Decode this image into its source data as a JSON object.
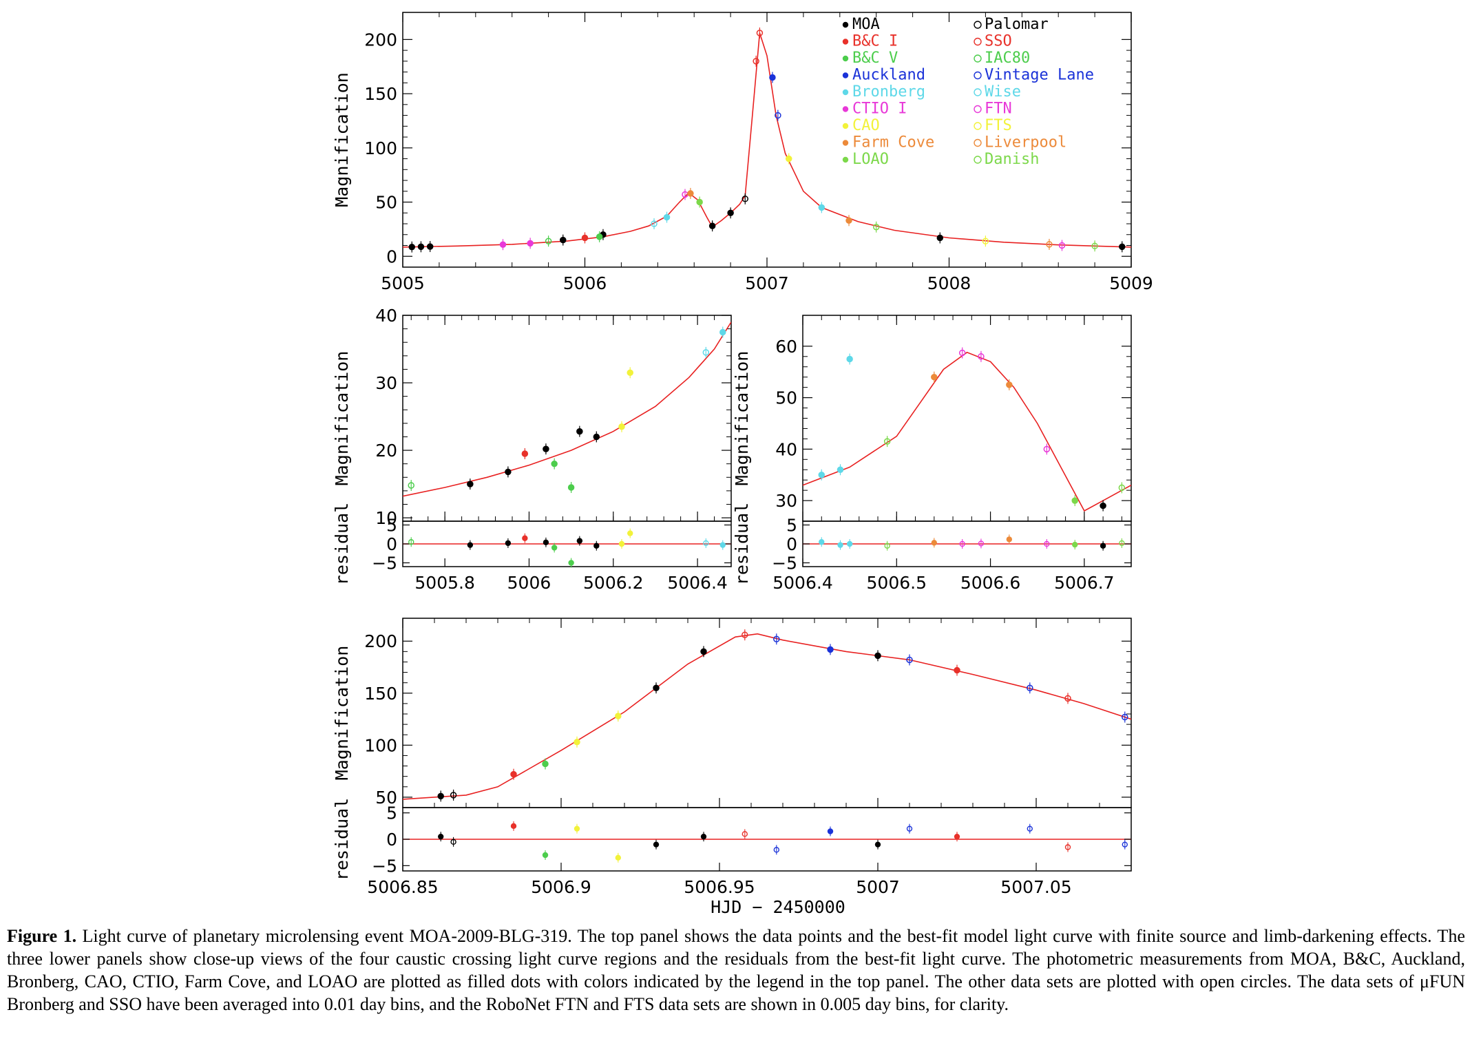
{
  "caption": {
    "label": "Figure 1.",
    "text": "Light curve of planetary microlensing event MOA-2009-BLG-319. The top panel shows the data points and the best-fit model light curve with finite source and limb-darkening effects. The three lower panels show close-up views of the four caustic crossing light curve regions and the residuals from the best-fit light curve. The photometric measurements from MOA, B&C, Auckland, Bronberg, CAO, CTIO, Farm Cove, and LOAO are plotted as filled dots with colors indicated by the legend in the top panel. The other data sets are plotted with open circles. The data sets of μFUN Bronberg and SSO have been averaged into 0.01 day bins, and the RoboNet FTN and FTS data sets are shown in 0.005 day bins, for clarity."
  },
  "xlabel": "HJD − 2450000",
  "ylabel": "Magnification",
  "residual_label": "residual",
  "legend": [
    {
      "name": "MOA",
      "color": "#000000",
      "filled": true
    },
    {
      "name": "B&C I",
      "color": "#e8312a",
      "filled": true
    },
    {
      "name": "B&C V",
      "color": "#4ccd4c",
      "filled": true
    },
    {
      "name": "Auckland",
      "color": "#1a32d8",
      "filled": true
    },
    {
      "name": "Bronberg",
      "color": "#5ed8e8",
      "filled": true
    },
    {
      "name": "CTIO I",
      "color": "#e838d8",
      "filled": true
    },
    {
      "name": "CAO",
      "color": "#f2f23a",
      "filled": true
    },
    {
      "name": "Farm Cove",
      "color": "#ec8a3a",
      "filled": true
    },
    {
      "name": "LOAO",
      "color": "#7cd84a",
      "filled": true
    },
    {
      "name": "Palomar",
      "color": "#000000",
      "filled": false
    },
    {
      "name": "SSO",
      "color": "#e8312a",
      "filled": false
    },
    {
      "name": "IAC80",
      "color": "#4ccd4c",
      "filled": false
    },
    {
      "name": "Vintage Lane",
      "color": "#1a32d8",
      "filled": false
    },
    {
      "name": "Wise",
      "color": "#5ed8e8",
      "filled": false
    },
    {
      "name": "FTN",
      "color": "#e838d8",
      "filled": false
    },
    {
      "name": "FTS",
      "color": "#f2f23a",
      "filled": false
    },
    {
      "name": "Liverpool",
      "color": "#ec8a3a",
      "filled": false
    },
    {
      "name": "Danish",
      "color": "#7cd84a",
      "filled": false
    }
  ],
  "model_color": "#e82020",
  "chart_data": [
    {
      "id": "top",
      "type": "scatter",
      "xlim": [
        5005,
        5009
      ],
      "ylim": [
        -10,
        225
      ],
      "xticks": [
        "5005",
        "5006",
        "5007",
        "5008",
        "5009"
      ],
      "yticks": [
        "0",
        "50",
        "100",
        "150",
        "200"
      ],
      "model": [
        [
          5005.0,
          8.5
        ],
        [
          5005.3,
          9.5
        ],
        [
          5005.6,
          11
        ],
        [
          5005.9,
          14
        ],
        [
          5006.1,
          18
        ],
        [
          5006.25,
          23
        ],
        [
          5006.35,
          28
        ],
        [
          5006.45,
          37
        ],
        [
          5006.52,
          50
        ],
        [
          5006.57,
          58.5
        ],
        [
          5006.62,
          52
        ],
        [
          5006.67,
          36
        ],
        [
          5006.7,
          27
        ],
        [
          5006.75,
          33
        ],
        [
          5006.8,
          40
        ],
        [
          5006.85,
          48
        ],
        [
          5006.88,
          56
        ],
        [
          5006.92,
          130
        ],
        [
          5006.96,
          206
        ],
        [
          5007.0,
          185
        ],
        [
          5007.05,
          130
        ],
        [
          5007.1,
          95
        ],
        [
          5007.2,
          60
        ],
        [
          5007.3,
          45
        ],
        [
          5007.5,
          32
        ],
        [
          5007.7,
          24
        ],
        [
          5008.0,
          17
        ],
        [
          5008.3,
          13
        ],
        [
          5008.6,
          10.5
        ],
        [
          5009.0,
          8.5
        ]
      ],
      "points": [
        {
          "s": "MOA",
          "x": 5005.05,
          "y": 8.6
        },
        {
          "s": "MOA",
          "x": 5005.1,
          "y": 8.8
        },
        {
          "s": "MOA",
          "x": 5005.15,
          "y": 9.0
        },
        {
          "s": "CTIO I",
          "x": 5005.55,
          "y": 10.8
        },
        {
          "s": "CTIO I",
          "x": 5005.7,
          "y": 12
        },
        {
          "s": "IAC80",
          "x": 5005.8,
          "y": 14
        },
        {
          "s": "MOA",
          "x": 5005.88,
          "y": 15
        },
        {
          "s": "B&C I",
          "x": 5006.0,
          "y": 17
        },
        {
          "s": "MOA",
          "x": 5006.1,
          "y": 20
        },
        {
          "s": "B&C V",
          "x": 5006.08,
          "y": 18
        },
        {
          "s": "Wise",
          "x": 5006.38,
          "y": 30
        },
        {
          "s": "Bronberg",
          "x": 5006.45,
          "y": 36
        },
        {
          "s": "FTN",
          "x": 5006.55,
          "y": 57
        },
        {
          "s": "Farm Cove",
          "x": 5006.58,
          "y": 58
        },
        {
          "s": "LOAO",
          "x": 5006.63,
          "y": 50
        },
        {
          "s": "MOA",
          "x": 5006.7,
          "y": 28
        },
        {
          "s": "MOA",
          "x": 5006.8,
          "y": 40
        },
        {
          "s": "Palomar",
          "x": 5006.88,
          "y": 53
        },
        {
          "s": "SSO",
          "x": 5006.94,
          "y": 180
        },
        {
          "s": "SSO",
          "x": 5006.96,
          "y": 206
        },
        {
          "s": "Auckland",
          "x": 5007.03,
          "y": 165
        },
        {
          "s": "Vintage Lane",
          "x": 5007.06,
          "y": 130
        },
        {
          "s": "CAO",
          "x": 5007.12,
          "y": 90
        },
        {
          "s": "Bronberg",
          "x": 5007.3,
          "y": 45
        },
        {
          "s": "Farm Cove",
          "x": 5007.45,
          "y": 33
        },
        {
          "s": "Danish",
          "x": 5007.6,
          "y": 27
        },
        {
          "s": "MOA",
          "x": 5007.95,
          "y": 17
        },
        {
          "s": "FTS",
          "x": 5008.2,
          "y": 14
        },
        {
          "s": "Liverpool",
          "x": 5008.55,
          "y": 11
        },
        {
          "s": "FTN",
          "x": 5008.62,
          "y": 10
        },
        {
          "s": "Danish",
          "x": 5008.8,
          "y": 9.5
        },
        {
          "s": "MOA",
          "x": 5008.95,
          "y": 8.8
        }
      ]
    },
    {
      "id": "mid-left",
      "type": "scatter",
      "xlim": [
        5005.7,
        5006.48
      ],
      "ylim": [
        9.5,
        40
      ],
      "rlim": [
        -6,
        6
      ],
      "xticks": [
        "5005.8",
        "5006",
        "5006.2",
        "5006.4"
      ],
      "yticks": [
        "10",
        "20",
        "30",
        "40"
      ],
      "rticks": [
        "−5",
        "0",
        "5"
      ],
      "model": [
        [
          5005.7,
          13.2
        ],
        [
          5005.8,
          14.5
        ],
        [
          5005.9,
          16.0
        ],
        [
          5006.0,
          17.8
        ],
        [
          5006.1,
          20.0
        ],
        [
          5006.2,
          22.8
        ],
        [
          5006.3,
          26.5
        ],
        [
          5006.38,
          30.8
        ],
        [
          5006.44,
          35.0
        ],
        [
          5006.48,
          39.0
        ]
      ],
      "points": [
        {
          "s": "IAC80",
          "x": 5005.72,
          "y": 14.8,
          "r": 0.5
        },
        {
          "s": "MOA",
          "x": 5005.86,
          "y": 15.0,
          "r": -0.3
        },
        {
          "s": "MOA",
          "x": 5005.95,
          "y": 16.8,
          "r": 0.2
        },
        {
          "s": "B&C I",
          "x": 5005.99,
          "y": 19.5,
          "r": 1.5
        },
        {
          "s": "B&C V",
          "x": 5006.06,
          "y": 18.0,
          "r": -1.0
        },
        {
          "s": "MOA",
          "x": 5006.04,
          "y": 20.2,
          "r": 0.4
        },
        {
          "s": "B&C V",
          "x": 5006.1,
          "y": 14.5,
          "r": -5.0
        },
        {
          "s": "MOA",
          "x": 5006.12,
          "y": 22.8,
          "r": 0.8
        },
        {
          "s": "MOA",
          "x": 5006.16,
          "y": 22.0,
          "r": -0.5
        },
        {
          "s": "CAO",
          "x": 5006.24,
          "y": 31.5,
          "r": 2.8
        },
        {
          "s": "CAO",
          "x": 5006.22,
          "y": 23.5,
          "r": 0.0
        },
        {
          "s": "Wise",
          "x": 5006.42,
          "y": 34.5,
          "r": 0.2
        },
        {
          "s": "Bronberg",
          "x": 5006.46,
          "y": 37.5,
          "r": -0.3
        }
      ]
    },
    {
      "id": "mid-right",
      "type": "scatter",
      "xlim": [
        5006.4,
        5006.75
      ],
      "ylim": [
        26,
        66
      ],
      "rlim": [
        -6,
        6
      ],
      "xticks": [
        "5006.4",
        "5006.5",
        "5006.6",
        "5006.7"
      ],
      "yticks": [
        "30",
        "40",
        "50",
        "60"
      ],
      "rticks": [
        "−5",
        "0",
        "5"
      ],
      "model": [
        [
          5006.4,
          33.0
        ],
        [
          5006.45,
          36.5
        ],
        [
          5006.5,
          42.5
        ],
        [
          5006.525,
          49.0
        ],
        [
          5006.55,
          55.5
        ],
        [
          5006.575,
          58.8
        ],
        [
          5006.6,
          57.0
        ],
        [
          5006.625,
          52.0
        ],
        [
          5006.65,
          45.0
        ],
        [
          5006.675,
          36.5
        ],
        [
          5006.7,
          28.0
        ],
        [
          5006.725,
          30.5
        ],
        [
          5006.75,
          33.0
        ]
      ],
      "points": [
        {
          "s": "Bronberg",
          "x": 5006.42,
          "y": 35.0,
          "r": 0.5
        },
        {
          "s": "Bronberg",
          "x": 5006.44,
          "y": 36.0,
          "r": -0.3
        },
        {
          "s": "Bronberg",
          "x": 5006.45,
          "y": 57.5,
          "r": 0.0
        },
        {
          "s": "Danish",
          "x": 5006.49,
          "y": 41.5,
          "r": -0.5
        },
        {
          "s": "Farm Cove",
          "x": 5006.54,
          "y": 54.0,
          "r": 0.3
        },
        {
          "s": "FTN",
          "x": 5006.57,
          "y": 58.7,
          "r": 0.0
        },
        {
          "s": "FTN",
          "x": 5006.59,
          "y": 58.0,
          "r": 0.1
        },
        {
          "s": "Farm Cove",
          "x": 5006.62,
          "y": 52.5,
          "r": 1.2
        },
        {
          "s": "FTN",
          "x": 5006.66,
          "y": 40.0,
          "r": 0.0
        },
        {
          "s": "LOAO",
          "x": 5006.69,
          "y": 30.0,
          "r": -0.2
        },
        {
          "s": "MOA",
          "x": 5006.72,
          "y": 29.0,
          "r": -0.5
        },
        {
          "s": "Danish",
          "x": 5006.74,
          "y": 32.5,
          "r": 0.2
        }
      ]
    },
    {
      "id": "bottom",
      "type": "scatter",
      "xlim": [
        5006.85,
        5007.08
      ],
      "ylim": [
        40,
        222
      ],
      "rlim": [
        -6,
        6
      ],
      "xticks": [
        "5006.85",
        "5006.9",
        "5006.95",
        "5007",
        "5007.05"
      ],
      "yticks": [
        "50",
        "100",
        "150",
        "200"
      ],
      "rticks": [
        "−5",
        "0",
        "5"
      ],
      "model": [
        [
          5006.85,
          48
        ],
        [
          5006.87,
          52
        ],
        [
          5006.88,
          60
        ],
        [
          5006.9,
          95
        ],
        [
          5006.92,
          132
        ],
        [
          5006.94,
          178
        ],
        [
          5006.955,
          204
        ],
        [
          5006.962,
          207
        ],
        [
          5006.97,
          201
        ],
        [
          5006.99,
          190
        ],
        [
          5007.01,
          182
        ],
        [
          5007.03,
          168
        ],
        [
          5007.05,
          153
        ],
        [
          5007.065,
          140
        ],
        [
          5007.08,
          125
        ]
      ],
      "points": [
        {
          "s": "MOA",
          "x": 5006.862,
          "y": 51,
          "r": 0.5
        },
        {
          "s": "Palomar",
          "x": 5006.866,
          "y": 52,
          "r": -0.5
        },
        {
          "s": "B&C I",
          "x": 5006.885,
          "y": 72,
          "r": 2.5
        },
        {
          "s": "B&C V",
          "x": 5006.895,
          "y": 82,
          "r": -3.0
        },
        {
          "s": "CAO",
          "x": 5006.905,
          "y": 103,
          "r": 2.0
        },
        {
          "s": "CAO",
          "x": 5006.918,
          "y": 128,
          "r": -3.5
        },
        {
          "s": "MOA",
          "x": 5006.93,
          "y": 155,
          "r": -1.0
        },
        {
          "s": "MOA",
          "x": 5006.945,
          "y": 190,
          "r": 0.5
        },
        {
          "s": "SSO",
          "x": 5006.958,
          "y": 206,
          "r": 1.0
        },
        {
          "s": "Vintage Lane",
          "x": 5006.968,
          "y": 202,
          "r": -2.0
        },
        {
          "s": "Auckland",
          "x": 5006.985,
          "y": 192,
          "r": 1.5
        },
        {
          "s": "MOA",
          "x": 5007.0,
          "y": 186,
          "r": -1.0
        },
        {
          "s": "Vintage Lane",
          "x": 5007.01,
          "y": 182,
          "r": 2.0
        },
        {
          "s": "B&C I",
          "x": 5007.025,
          "y": 172,
          "r": 0.5
        },
        {
          "s": "Vintage Lane",
          "x": 5007.048,
          "y": 155,
          "r": 2.0
        },
        {
          "s": "SSO",
          "x": 5007.06,
          "y": 145,
          "r": -1.5
        },
        {
          "s": "Vintage Lane",
          "x": 5007.078,
          "y": 127,
          "r": -1.0
        }
      ]
    }
  ]
}
